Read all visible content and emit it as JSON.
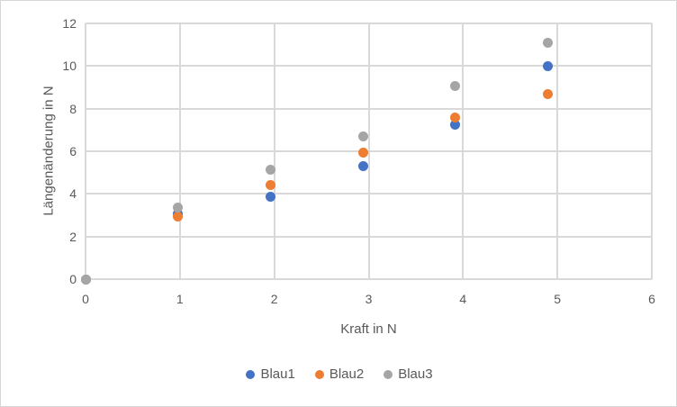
{
  "colors": {
    "series_blue": "#4472C4",
    "series_orange": "#ED7D31",
    "series_gray": "#A5A5A5",
    "gridline": "#D9D9D9",
    "text": "#595959",
    "chart_border": "#D6D6D6"
  },
  "chart_data": {
    "type": "scatter",
    "title": "",
    "xlabel": "Kraft in N",
    "ylabel": "Längenänderung in N",
    "xlim": [
      0,
      6
    ],
    "ylim": [
      0,
      12
    ],
    "x_ticks": [
      0,
      1,
      2,
      3,
      4,
      5,
      6
    ],
    "y_ticks": [
      0,
      2,
      4,
      6,
      8,
      10,
      12
    ],
    "grid": true,
    "legend_position": "bottom-center",
    "marker": "circle",
    "series": [
      {
        "name": "Blau1",
        "color": "#4472C4",
        "points": [
          [
            0,
            0
          ],
          [
            0.98,
            3.05
          ],
          [
            1.96,
            3.85
          ],
          [
            2.94,
            5.3
          ],
          [
            3.92,
            7.25
          ],
          [
            4.9,
            10.0
          ]
        ]
      },
      {
        "name": "Blau2",
        "color": "#ED7D31",
        "points": [
          [
            0,
            0
          ],
          [
            0.98,
            2.95
          ],
          [
            1.96,
            4.4
          ],
          [
            2.94,
            5.95
          ],
          [
            3.92,
            7.6
          ],
          [
            4.9,
            8.7
          ]
        ]
      },
      {
        "name": "Blau3",
        "color": "#A5A5A5",
        "points": [
          [
            0,
            0
          ],
          [
            0.98,
            3.35
          ],
          [
            1.96,
            5.15
          ],
          [
            2.94,
            6.7
          ],
          [
            3.92,
            9.05
          ],
          [
            4.9,
            11.1
          ]
        ]
      }
    ]
  }
}
